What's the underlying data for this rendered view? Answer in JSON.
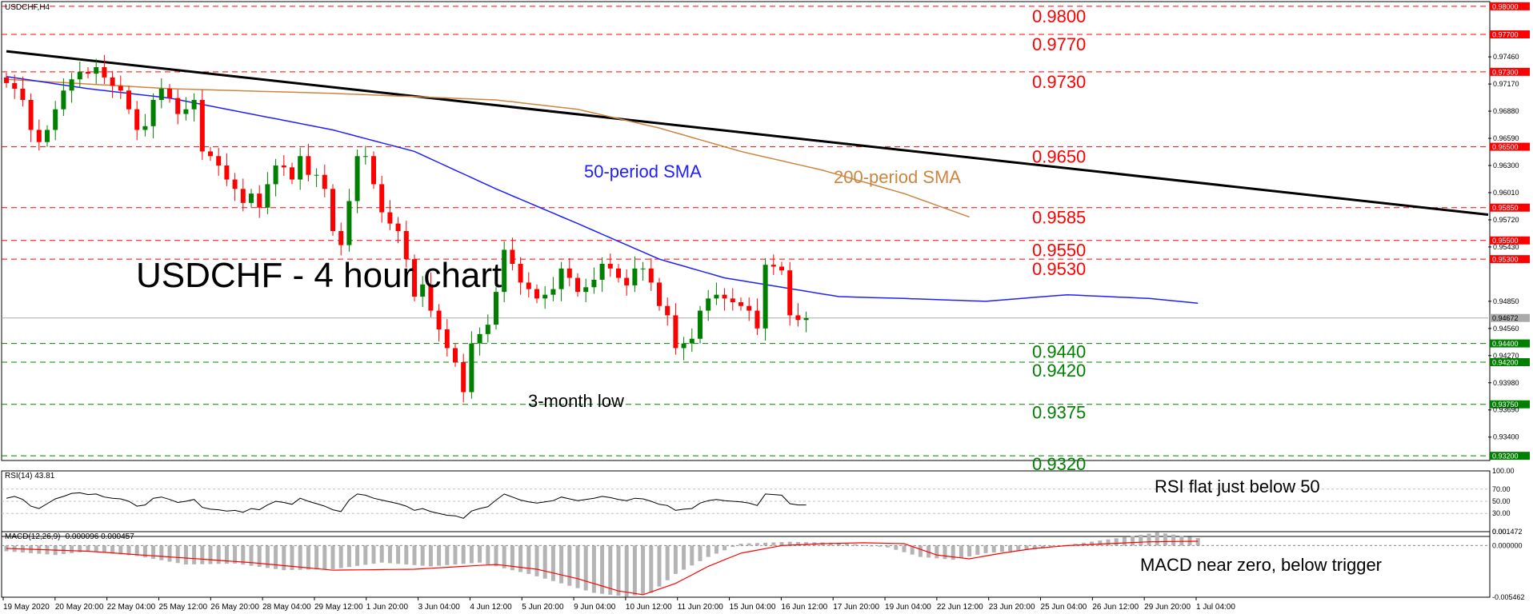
{
  "symbol_label": "USDCHF,H4",
  "chart_title": "USDCHF - 4 hour chart",
  "annotations": {
    "sma50": "50-period SMA",
    "sma200": "200-period SMA",
    "low": "3-month low",
    "rsi": "RSI flat just below 50",
    "macd": "MACD near zero, below trigger"
  },
  "colors": {
    "resistance": "#ff0000",
    "support": "#008000",
    "sma50": "#1f1fff",
    "sma200": "#cd853f",
    "trendline": "#000000",
    "bull_candle": "#008000",
    "bear_candle": "#ff0000",
    "macd_signal": "#ff0000",
    "macd_histogram": "#b4b4b4"
  },
  "price_axis": {
    "ticks": [
      "0.97460",
      "0.97170",
      "0.96880",
      "0.96590",
      "0.96300",
      "0.96010",
      "0.95720",
      "0.95430",
      "0.94850",
      "0.94560",
      "0.94270",
      "0.93980",
      "0.93690",
      "0.93400"
    ],
    "current_price_label": "0.94672"
  },
  "rsi_panel": {
    "label": "RSI(14) 43.81",
    "ticks": [
      "100.00",
      "70.00",
      "50.00",
      "30.00",
      "0.00"
    ]
  },
  "macd_panel": {
    "label": "MACD(12,26,9) -0.000096 0.000457",
    "ticks": [
      "0.001472",
      "0.000000",
      "-0.005462"
    ]
  },
  "time_axis": [
    "19 May 2020",
    "20 May 20:00",
    "22 May 04:00",
    "25 May 12:00",
    "26 May 20:00",
    "28 May 04:00",
    "29 May 12:00",
    "1 Jun 20:00",
    "3 Jun 04:00",
    "4 Jun 12:00",
    "5 Jun 20:00",
    "9 Jun 04:00",
    "10 Jun 12:00",
    "11 Jun 20:00",
    "15 Jun 04:00",
    "16 Jun 12:00",
    "17 Jun 20:00",
    "19 Jun 04:00",
    "22 Jun 12:00",
    "23 Jun 20:00",
    "25 Jun 04:00",
    "26 Jun 12:00",
    "29 Jun 20:00",
    "1 Jul 04:00"
  ],
  "chart_data": {
    "type": "candlestick",
    "title": "USDCHF - 4 hour chart",
    "ylim": [
      0.9315,
      0.9805
    ],
    "resistance_levels": [
      {
        "value": 0.98,
        "label": "0.9800",
        "tag": "0.98000"
      },
      {
        "value": 0.977,
        "label": "0.9770",
        "tag": "0.97700"
      },
      {
        "value": 0.973,
        "label": "0.9730",
        "tag": "0.97300"
      },
      {
        "value": 0.965,
        "label": "0.9650",
        "tag": "0.96500"
      },
      {
        "value": 0.9585,
        "label": "0.9585",
        "tag": "0.95850"
      },
      {
        "value": 0.955,
        "label": "0.9550",
        "tag": "0.95500"
      },
      {
        "value": 0.953,
        "label": "0.9530",
        "tag": "0.95300"
      }
    ],
    "support_levels": [
      {
        "value": 0.944,
        "label": "0.9440",
        "tag": "0.94400"
      },
      {
        "value": 0.942,
        "label": "0.9420",
        "tag": "0.94200"
      },
      {
        "value": 0.9375,
        "label": "0.9375",
        "tag": "0.93750"
      },
      {
        "value": 0.932,
        "label": "0.9320",
        "tag": "0.93200"
      }
    ],
    "close_path": [
      0.9718,
      0.9712,
      0.97,
      0.9668,
      0.9655,
      0.9668,
      0.969,
      0.971,
      0.9722,
      0.973,
      0.9728,
      0.9735,
      0.9724,
      0.9715,
      0.971,
      0.969,
      0.9668,
      0.9672,
      0.97,
      0.9712,
      0.9702,
      0.9685,
      0.969,
      0.97,
      0.9645,
      0.964,
      0.963,
      0.9615,
      0.9605,
      0.959,
      0.96,
      0.9585,
      0.961,
      0.963,
      0.9628,
      0.9615,
      0.964,
      0.962,
      0.962,
      0.9605,
      0.956,
      0.9545,
      0.9592,
      0.964,
      0.964,
      0.961,
      0.958,
      0.9568,
      0.956,
      0.953,
      0.949,
      0.9503,
      0.9475,
      0.9455,
      0.9435,
      0.942,
      0.9388,
      0.944,
      0.945,
      0.946,
      0.9495,
      0.954,
      0.9525,
      0.9505,
      0.9498,
      0.9488,
      0.9492,
      0.9498,
      0.952,
      0.951,
      0.9495,
      0.95,
      0.9508,
      0.9525,
      0.952,
      0.951,
      0.9502,
      0.952,
      0.952,
      0.9505,
      0.948,
      0.947,
      0.9435,
      0.944,
      0.9445,
      0.9475,
      0.9488,
      0.9492,
      0.9488,
      0.9484,
      0.948,
      0.9475,
      0.9456,
      0.9524,
      0.9522,
      0.9518,
      0.947,
      0.9465,
      0.9467
    ],
    "sma50": [
      [
        0,
        0.9725
      ],
      [
        10,
        0.9712
      ],
      [
        20,
        0.9702
      ],
      [
        30,
        0.9685
      ],
      [
        40,
        0.9668
      ],
      [
        50,
        0.9645
      ],
      [
        60,
        0.9605
      ],
      [
        70,
        0.9568
      ],
      [
        80,
        0.953
      ],
      [
        88,
        0.951
      ],
      [
        95,
        0.95
      ],
      [
        102,
        0.949
      ],
      [
        110,
        0.9488
      ],
      [
        120,
        0.9485
      ],
      [
        130,
        0.9492
      ],
      [
        140,
        0.9488
      ],
      [
        146,
        0.9483
      ]
    ],
    "sma200": [
      [
        0,
        0.9722
      ],
      [
        20,
        0.9712
      ],
      [
        40,
        0.9707
      ],
      [
        60,
        0.97
      ],
      [
        70,
        0.969
      ],
      [
        80,
        0.967
      ],
      [
        90,
        0.9645
      ],
      [
        100,
        0.9625
      ],
      [
        110,
        0.96
      ],
      [
        118,
        0.9575
      ]
    ],
    "trendline": [
      [
        0,
        0.9752
      ],
      [
        155,
        0.9603
      ]
    ],
    "rsi": {
      "ylim": [
        0,
        100
      ],
      "values": [
        55,
        58,
        53,
        42,
        38,
        46,
        54,
        58,
        63,
        64,
        61,
        62,
        57,
        55,
        54,
        50,
        42,
        44,
        55,
        57,
        53,
        48,
        50,
        53,
        40,
        37,
        36,
        34,
        35,
        32,
        38,
        36,
        44,
        50,
        48,
        45,
        55,
        50,
        46,
        42,
        36,
        33,
        52,
        62,
        60,
        55,
        52,
        49,
        46,
        42,
        35,
        38,
        33,
        30,
        27,
        26,
        22,
        34,
        38,
        41,
        52,
        62,
        57,
        52,
        49,
        47,
        49,
        51,
        57,
        54,
        51,
        53,
        55,
        58,
        56,
        53,
        51,
        55,
        54,
        50,
        45,
        43,
        35,
        37,
        38,
        47,
        51,
        53,
        51,
        50,
        49,
        47,
        43,
        62,
        61,
        60,
        46,
        44,
        44
      ]
    },
    "macd": {
      "ylim": [
        -0.005462,
        0.001472
      ],
      "signal": [
        [
          0,
          -0.0003
        ],
        [
          10,
          -0.0006
        ],
        [
          20,
          -0.0012
        ],
        [
          30,
          -0.0018
        ],
        [
          40,
          -0.0026
        ],
        [
          50,
          -0.0025
        ],
        [
          60,
          -0.002
        ],
        [
          65,
          -0.0025
        ],
        [
          70,
          -0.0035
        ],
        [
          75,
          -0.0048
        ],
        [
          78,
          -0.0052
        ],
        [
          82,
          -0.004
        ],
        [
          86,
          -0.0022
        ],
        [
          90,
          -0.0008
        ],
        [
          95,
          0.0
        ],
        [
          100,
          0.0002
        ],
        [
          105,
          0.0003
        ],
        [
          110,
          0.0002
        ],
        [
          114,
          -0.001
        ],
        [
          118,
          -0.0014
        ],
        [
          122,
          -0.0008
        ],
        [
          126,
          -0.0003
        ],
        [
          130,
          0.0
        ],
        [
          135,
          0.0002
        ],
        [
          140,
          0.0004
        ],
        [
          146,
          0.00046
        ]
      ],
      "histogram_profile": [
        [
          0,
          -0.0006
        ],
        [
          6,
          -0.001
        ],
        [
          10,
          -0.0006
        ],
        [
          16,
          -0.0011
        ],
        [
          22,
          -0.002
        ],
        [
          28,
          -0.0019
        ],
        [
          34,
          -0.0026
        ],
        [
          40,
          -0.0025
        ],
        [
          46,
          -0.0018
        ],
        [
          52,
          -0.0022
        ],
        [
          58,
          -0.0018
        ],
        [
          64,
          -0.003
        ],
        [
          68,
          -0.004
        ],
        [
          72,
          -0.005
        ],
        [
          76,
          -0.0054
        ],
        [
          79,
          -0.005
        ],
        [
          82,
          -0.003
        ],
        [
          86,
          -0.0012
        ],
        [
          90,
          0.0002
        ],
        [
          96,
          0.0004
        ],
        [
          102,
          0.0003
        ],
        [
          108,
          -0.0002
        ],
        [
          112,
          -0.0012
        ],
        [
          116,
          -0.0015
        ],
        [
          120,
          -0.0008
        ],
        [
          126,
          -0.0004
        ],
        [
          132,
          0.0003
        ],
        [
          138,
          0.001
        ],
        [
          141,
          0.0014
        ],
        [
          146,
          0.0008
        ]
      ]
    }
  }
}
